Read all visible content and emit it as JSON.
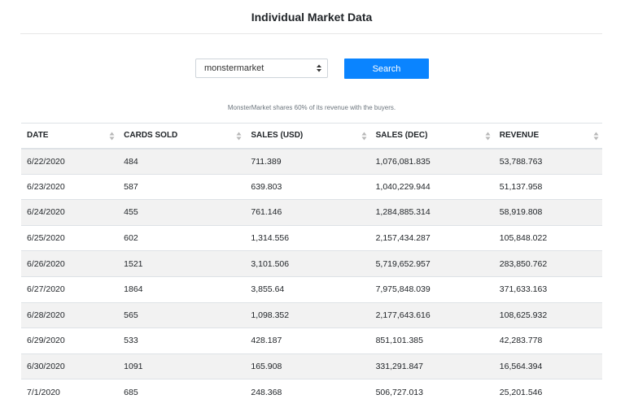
{
  "header": {
    "title": "Individual Market Data"
  },
  "controls": {
    "market_select_value": "monstermarket",
    "search_label": "Search"
  },
  "note": "MonsterMarket shares 60% of its revenue with the buyers.",
  "table": {
    "columns": [
      "DATE",
      "CARDS SOLD",
      "SALES (USD)",
      "SALES (DEC)",
      "REVENUE"
    ],
    "rows": [
      [
        "6/22/2020",
        "484",
        "711.389",
        "1,076,081.835",
        "53,788.763"
      ],
      [
        "6/23/2020",
        "587",
        "639.803",
        "1,040,229.944",
        "51,137.958"
      ],
      [
        "6/24/2020",
        "455",
        "761.146",
        "1,284,885.314",
        "58,919.808"
      ],
      [
        "6/25/2020",
        "602",
        "1,314.556",
        "2,157,434.287",
        "105,848.022"
      ],
      [
        "6/26/2020",
        "1521",
        "3,101.506",
        "5,719,652.957",
        "283,850.762"
      ],
      [
        "6/27/2020",
        "1864",
        "3,855.64",
        "7,975,848.039",
        "371,633.163"
      ],
      [
        "6/28/2020",
        "565",
        "1,098.352",
        "2,177,643.616",
        "108,625.932"
      ],
      [
        "6/29/2020",
        "533",
        "428.187",
        "851,101.385",
        "42,283.778"
      ],
      [
        "6/30/2020",
        "1091",
        "165.908",
        "331,291.847",
        "16,564.394"
      ],
      [
        "7/1/2020",
        "685",
        "248.368",
        "506,727.013",
        "25,201.546"
      ]
    ]
  },
  "colors": {
    "accent": "#0a84ff",
    "stripe": "#f2f2f2"
  }
}
